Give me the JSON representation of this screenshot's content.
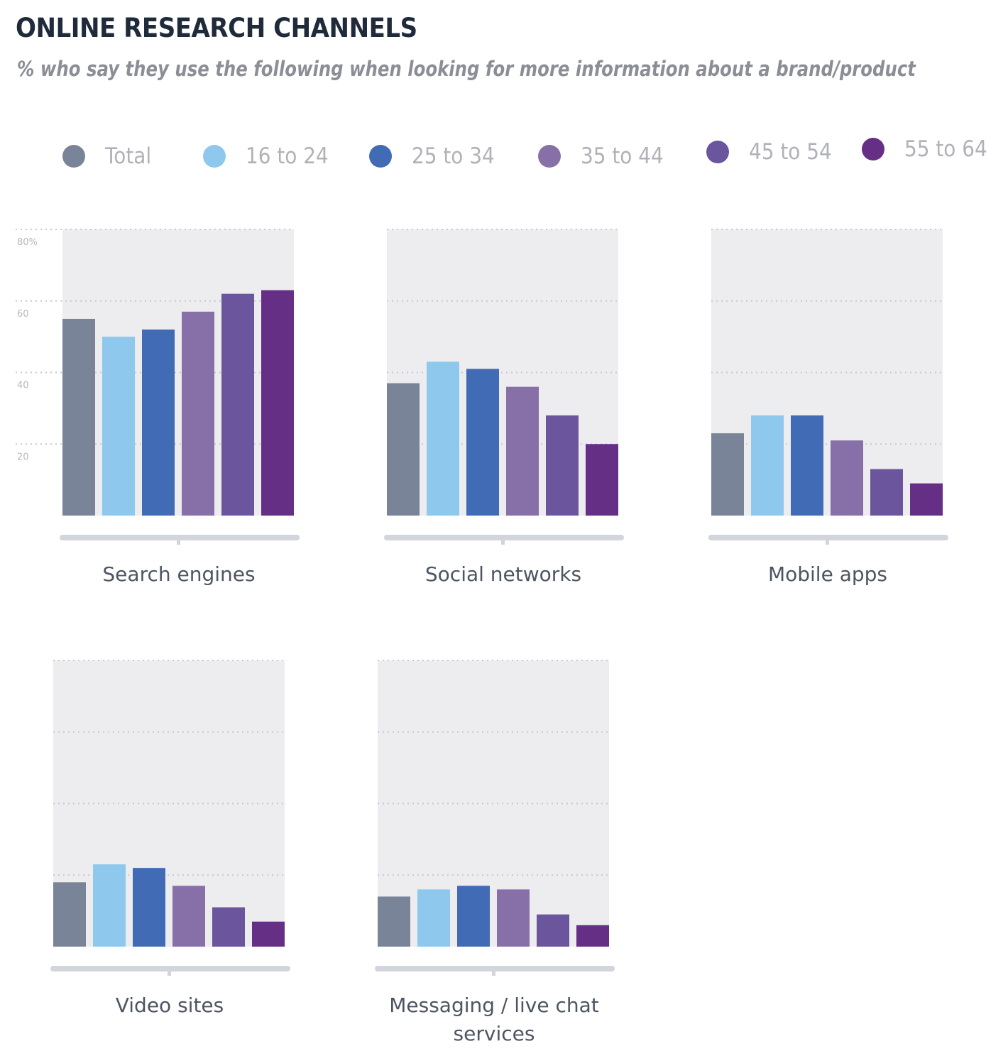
{
  "header": {
    "title": "ONLINE RESEARCH CHANNELS",
    "subtitle": "% who say they use the following when looking for more information about a brand/product"
  },
  "legend": [
    {
      "label": "Total",
      "color": "#7a8498"
    },
    {
      "label": "16 to 24",
      "color": "#8ec8ec"
    },
    {
      "label": "25 to 34",
      "color": "#416bb4"
    },
    {
      "label": "35 to 44",
      "color": "#8770a8"
    },
    {
      "label": "45 to 54",
      "color": "#6b559c"
    },
    {
      "label": "55 to 64",
      "color": "#652f85"
    }
  ],
  "chart_data": {
    "type": "bar",
    "title": "ONLINE RESEARCH CHANNELS",
    "subtitle": "% who say they use the following when looking for more information about a brand/product",
    "xlabel": "",
    "ylabel": "%",
    "ylim": [
      0,
      80
    ],
    "yticks": [
      20,
      40,
      60,
      80
    ],
    "ytick_labels": [
      "20",
      "40",
      "60",
      "80%"
    ],
    "grid": true,
    "legend_position": "top",
    "series_names": [
      "Total",
      "16 to 24",
      "25 to 34",
      "35 to 44",
      "45 to 54",
      "55 to 64"
    ],
    "panels": [
      {
        "category": "Search engines",
        "label_lines": [
          "Search engines"
        ],
        "values": [
          55,
          50,
          52,
          57,
          62,
          63
        ]
      },
      {
        "category": "Social networks",
        "label_lines": [
          "Social networks"
        ],
        "values": [
          37,
          43,
          41,
          36,
          28,
          20
        ]
      },
      {
        "category": "Mobile apps",
        "label_lines": [
          "Mobile apps"
        ],
        "values": [
          23,
          28,
          28,
          21,
          13,
          9
        ]
      },
      {
        "category": "Video sites",
        "label_lines": [
          "Video sites"
        ],
        "values": [
          18,
          23,
          22,
          17,
          11,
          7
        ]
      },
      {
        "category": "Messaging / live chat services",
        "label_lines": [
          "Messaging / live chat",
          "services"
        ],
        "values": [
          14,
          16,
          17,
          16,
          9,
          6
        ]
      }
    ]
  }
}
